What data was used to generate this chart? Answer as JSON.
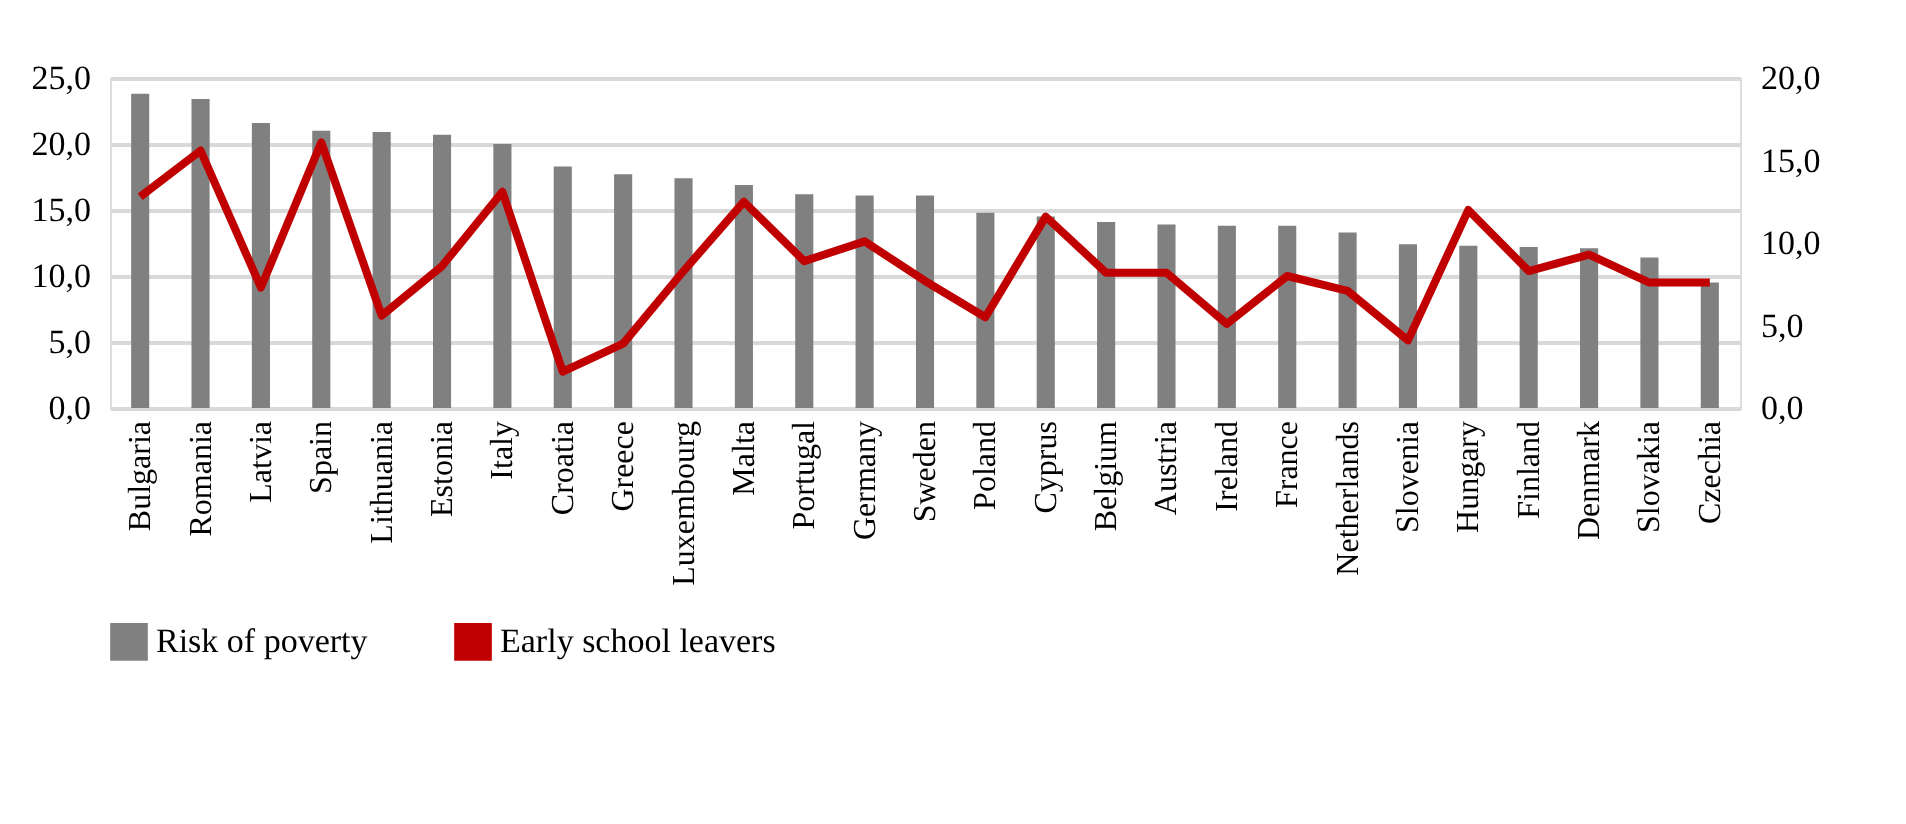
{
  "chart_data": {
    "type": "bar",
    "categories": [
      "Bulgaria",
      "Romania",
      "Latvia",
      "Spain",
      "Lithuania",
      "Estonia",
      "Italy",
      "Croatia",
      "Greece",
      "Luxembourg",
      "Malta",
      "Portugal",
      "Germany",
      "Sweden",
      "Poland",
      "Cyprus",
      "Belgium",
      "Austria",
      "Ireland",
      "France",
      "Netherlands",
      "Slovenia",
      "Hungary",
      "Finland",
      "Denmark",
      "Slovakia",
      "Czechia"
    ],
    "series": [
      {
        "name": "Risk of poverty",
        "color": "#808080",
        "values": [
          23.8,
          23.4,
          21.6,
          21.0,
          20.9,
          20.7,
          20.0,
          18.3,
          17.7,
          17.4,
          16.9,
          16.2,
          16.1,
          16.1,
          14.8,
          14.5,
          14.1,
          13.9,
          13.8,
          13.8,
          13.3,
          12.4,
          12.3,
          12.2,
          12.1,
          11.4,
          9.5
        ]
      },
      {
        "name": "Early school leavers",
        "type": "line",
        "axis": "y2",
        "color": "#c00000",
        "values": [
          12.8,
          15.6,
          7.3,
          16.1,
          5.6,
          8.6,
          13.1,
          2.2,
          3.9,
          8.3,
          12.5,
          8.9,
          10.1,
          7.7,
          5.5,
          11.6,
          8.2,
          8.2,
          5.1,
          8.0,
          7.1,
          4.1,
          12.0,
          8.3,
          9.3,
          7.6,
          7.6
        ]
      }
    ],
    "ylim": [
      0,
      25
    ],
    "yticks": [
      {
        "value": 0,
        "label": "0,0"
      },
      {
        "value": 5,
        "label": "5,0"
      },
      {
        "value": 10,
        "label": "10,0"
      },
      {
        "value": 15,
        "label": "15,0"
      },
      {
        "value": 20,
        "label": "20,0"
      },
      {
        "value": 25,
        "label": "25,0"
      }
    ],
    "y2lim": [
      0,
      20
    ],
    "y2ticks": [
      {
        "value": 0,
        "label": "0,0"
      },
      {
        "value": 5,
        "label": "5,0"
      },
      {
        "value": 10,
        "label": "10,0"
      },
      {
        "value": 15,
        "label": "15,0"
      },
      {
        "value": 20,
        "label": "20,0"
      }
    ],
    "grid": "y",
    "legend": "bottom",
    "marker": "none",
    "line_style": "solid"
  }
}
